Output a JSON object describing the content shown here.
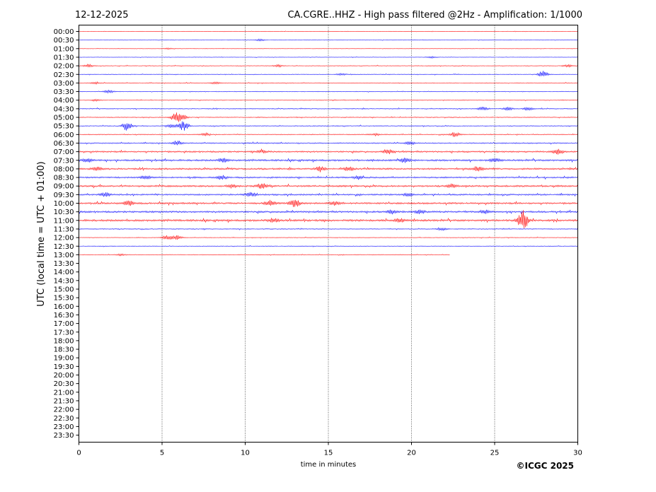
{
  "header": {
    "date": "12-12-2025",
    "title": "CA.CGRE..HHZ - High pass filtered @2Hz - Amplification: 1/1000"
  },
  "copyright": "©ICGC 2025",
  "chart_data": {
    "type": "line",
    "xlabel": "time in minutes",
    "ylabel": "UTC (local time = UTC + 01:00)",
    "xlim": [
      0,
      30
    ],
    "x_ticks": [
      "0",
      "5",
      "10",
      "15",
      "20",
      "25",
      "30"
    ],
    "x_tick_values": [
      0,
      5,
      10,
      15,
      20,
      25,
      30
    ],
    "grid": "vertical dotted lines at each x tick",
    "y_ticks": [
      "00:00",
      "00:30",
      "01:00",
      "01:30",
      "02:00",
      "02:30",
      "03:00",
      "03:30",
      "04:00",
      "04:30",
      "05:00",
      "05:30",
      "06:00",
      "06:30",
      "07:00",
      "07:30",
      "08:00",
      "08:30",
      "09:00",
      "09:30",
      "10:00",
      "10:30",
      "11:00",
      "11:30",
      "12:00",
      "12:30",
      "13:00",
      "13:30",
      "14:00",
      "14:30",
      "15:00",
      "15:30",
      "16:00",
      "16:30",
      "17:00",
      "17:30",
      "18:00",
      "18:30",
      "19:00",
      "19:30",
      "20:00",
      "20:30",
      "21:00",
      "21:30",
      "22:00",
      "22:30",
      "23:00",
      "23:30"
    ],
    "trace_colors": [
      "#ff0000",
      "#0000ff"
    ],
    "traces": [
      {
        "time": "00:00",
        "end_minute": 30,
        "activity": 0.2,
        "events": []
      },
      {
        "time": "00:30",
        "end_minute": 30,
        "activity": 0.2,
        "events": [
          {
            "minute": 10.9,
            "amp": 0.4
          }
        ]
      },
      {
        "time": "01:00",
        "end_minute": 30,
        "activity": 0.2,
        "events": [
          {
            "minute": 5.4,
            "amp": 0.3
          }
        ]
      },
      {
        "time": "01:30",
        "end_minute": 30,
        "activity": 0.2,
        "events": [
          {
            "minute": 21.2,
            "amp": 0.4
          }
        ]
      },
      {
        "time": "02:00",
        "end_minute": 30,
        "activity": 0.3,
        "events": [
          {
            "minute": 0.6,
            "amp": 0.6
          },
          {
            "minute": 12.0,
            "amp": 0.5
          },
          {
            "minute": 29.4,
            "amp": 0.5
          }
        ]
      },
      {
        "time": "02:30",
        "end_minute": 30,
        "activity": 0.3,
        "events": [
          {
            "minute": 15.8,
            "amp": 0.4
          },
          {
            "minute": 27.9,
            "amp": 1.4
          }
        ]
      },
      {
        "time": "03:00",
        "end_minute": 30,
        "activity": 0.3,
        "events": [
          {
            "minute": 1.0,
            "amp": 0.4
          },
          {
            "minute": 8.2,
            "amp": 0.4
          }
        ]
      },
      {
        "time": "03:30",
        "end_minute": 30,
        "activity": 0.3,
        "events": [
          {
            "minute": 1.8,
            "amp": 0.6
          }
        ]
      },
      {
        "time": "04:00",
        "end_minute": 30,
        "activity": 0.3,
        "events": [
          {
            "minute": 1.0,
            "amp": 0.4
          }
        ]
      },
      {
        "time": "04:30",
        "end_minute": 30,
        "activity": 0.4,
        "events": [
          {
            "minute": 24.3,
            "amp": 0.8
          },
          {
            "minute": 25.8,
            "amp": 0.7
          },
          {
            "minute": 27.0,
            "amp": 0.6
          }
        ]
      },
      {
        "time": "05:00",
        "end_minute": 30,
        "activity": 0.4,
        "events": [
          {
            "minute": 5.8,
            "amp": 1.8
          },
          {
            "minute": 6.2,
            "amp": 1.4
          }
        ]
      },
      {
        "time": "05:30",
        "end_minute": 30,
        "activity": 0.4,
        "events": [
          {
            "minute": 2.9,
            "amp": 2.0
          },
          {
            "minute": 6.3,
            "amp": 2.0
          },
          {
            "minute": 5.6,
            "amp": 0.8
          }
        ]
      },
      {
        "time": "06:00",
        "end_minute": 30,
        "activity": 0.4,
        "events": [
          {
            "minute": 7.6,
            "amp": 0.6
          },
          {
            "minute": 17.8,
            "amp": 0.5
          },
          {
            "minute": 22.6,
            "amp": 1.0
          }
        ]
      },
      {
        "time": "06:30",
        "end_minute": 30,
        "activity": 0.5,
        "events": [
          {
            "minute": 5.9,
            "amp": 1.0
          },
          {
            "minute": 19.9,
            "amp": 0.7
          }
        ]
      },
      {
        "time": "07:00",
        "end_minute": 30,
        "activity": 0.7,
        "events": [
          {
            "minute": 18.6,
            "amp": 1.0
          },
          {
            "minute": 28.8,
            "amp": 1.4
          },
          {
            "minute": 11.0,
            "amp": 0.7
          }
        ]
      },
      {
        "time": "07:30",
        "end_minute": 30,
        "activity": 0.8,
        "events": [
          {
            "minute": 0.5,
            "amp": 0.8
          },
          {
            "minute": 8.7,
            "amp": 0.8
          },
          {
            "minute": 19.6,
            "amp": 0.9
          },
          {
            "minute": 25.0,
            "amp": 1.0
          }
        ]
      },
      {
        "time": "08:00",
        "end_minute": 30,
        "activity": 0.8,
        "events": [
          {
            "minute": 1.1,
            "amp": 0.9
          },
          {
            "minute": 14.5,
            "amp": 1.0
          },
          {
            "minute": 16.2,
            "amp": 0.9
          },
          {
            "minute": 24.0,
            "amp": 0.9
          }
        ]
      },
      {
        "time": "08:30",
        "end_minute": 30,
        "activity": 0.7,
        "events": [
          {
            "minute": 4.0,
            "amp": 0.8
          },
          {
            "minute": 8.6,
            "amp": 0.9
          },
          {
            "minute": 16.8,
            "amp": 0.8
          }
        ]
      },
      {
        "time": "09:00",
        "end_minute": 30,
        "activity": 0.8,
        "events": [
          {
            "minute": 9.2,
            "amp": 0.9
          },
          {
            "minute": 11.0,
            "amp": 1.2
          },
          {
            "minute": 22.4,
            "amp": 0.8
          }
        ]
      },
      {
        "time": "09:30",
        "end_minute": 30,
        "activity": 0.7,
        "events": [
          {
            "minute": 1.6,
            "amp": 0.8
          },
          {
            "minute": 10.3,
            "amp": 0.9
          },
          {
            "minute": 19.8,
            "amp": 0.7
          }
        ]
      },
      {
        "time": "10:00",
        "end_minute": 30,
        "activity": 0.8,
        "events": [
          {
            "minute": 3.0,
            "amp": 1.2
          },
          {
            "minute": 11.5,
            "amp": 1.3
          },
          {
            "minute": 13.0,
            "amp": 1.8
          },
          {
            "minute": 15.4,
            "amp": 0.9
          }
        ]
      },
      {
        "time": "10:30",
        "end_minute": 30,
        "activity": 0.8,
        "events": [
          {
            "minute": 18.8,
            "amp": 0.9
          },
          {
            "minute": 20.5,
            "amp": 0.8
          },
          {
            "minute": 24.4,
            "amp": 0.8
          }
        ]
      },
      {
        "time": "11:00",
        "end_minute": 30,
        "activity": 0.9,
        "events": [
          {
            "minute": 11.7,
            "amp": 0.9
          },
          {
            "minute": 19.3,
            "amp": 0.9
          },
          {
            "minute": 26.7,
            "amp": 4.5
          }
        ]
      },
      {
        "time": "11:30",
        "end_minute": 30,
        "activity": 0.4,
        "events": [
          {
            "minute": 21.8,
            "amp": 0.6
          }
        ]
      },
      {
        "time": "12:00",
        "end_minute": 30,
        "activity": 0.3,
        "events": [
          {
            "minute": 5.3,
            "amp": 1.0
          },
          {
            "minute": 5.9,
            "amp": 0.9
          }
        ]
      },
      {
        "time": "12:30",
        "end_minute": 30,
        "activity": 0.3,
        "events": []
      },
      {
        "time": "13:00",
        "end_minute": 22.3,
        "activity": 0.3,
        "events": [
          {
            "minute": 2.5,
            "amp": 0.4
          }
        ]
      }
    ]
  }
}
